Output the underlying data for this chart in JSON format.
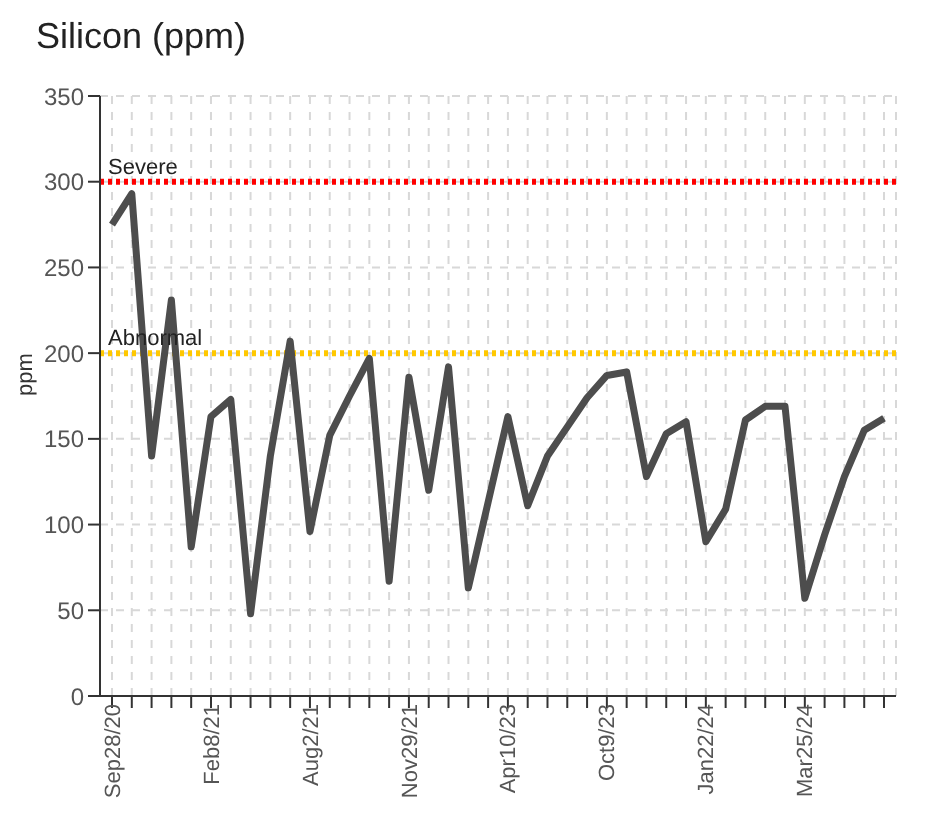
{
  "chart_data": {
    "type": "line",
    "title": "Silicon (ppm)",
    "ylabel": "ppm",
    "categories": [
      "Sep28/20",
      null,
      null,
      null,
      null,
      "Feb8/21",
      null,
      null,
      null,
      null,
      "Aug2/21",
      null,
      null,
      null,
      null,
      "Nov29/21",
      null,
      null,
      null,
      null,
      "Apr10/23",
      null,
      null,
      null,
      null,
      "Oct9/23",
      null,
      null,
      null,
      null,
      "Jan22/24",
      null,
      null,
      null,
      null,
      "Mar25/24",
      null,
      null,
      null,
      null
    ],
    "series": [
      {
        "color": "#4d4d4d",
        "values": [
          275,
          293,
          140,
          231,
          87,
          163,
          173,
          48,
          140,
          207,
          96,
          152,
          175,
          197,
          67,
          186,
          120,
          192,
          63,
          113,
          163,
          111,
          140,
          157,
          174,
          187,
          189,
          128,
          153,
          160,
          90,
          109,
          161,
          169,
          169,
          57,
          94,
          128,
          155,
          162
        ]
      }
    ],
    "ylim": [
      0,
      350
    ],
    "yticks": [
      0,
      50,
      100,
      150,
      200,
      250,
      300,
      350
    ],
    "grid": true,
    "marker": "none",
    "line_style": "solid",
    "ref_lines": [
      {
        "axis": "y",
        "value": 300,
        "label": "Severe",
        "color": "#ff0000",
        "line_style": "dotted"
      },
      {
        "axis": "y",
        "value": 200,
        "label": "Abnormal",
        "color": "#ffc800",
        "line_style": "dotted"
      }
    ]
  }
}
